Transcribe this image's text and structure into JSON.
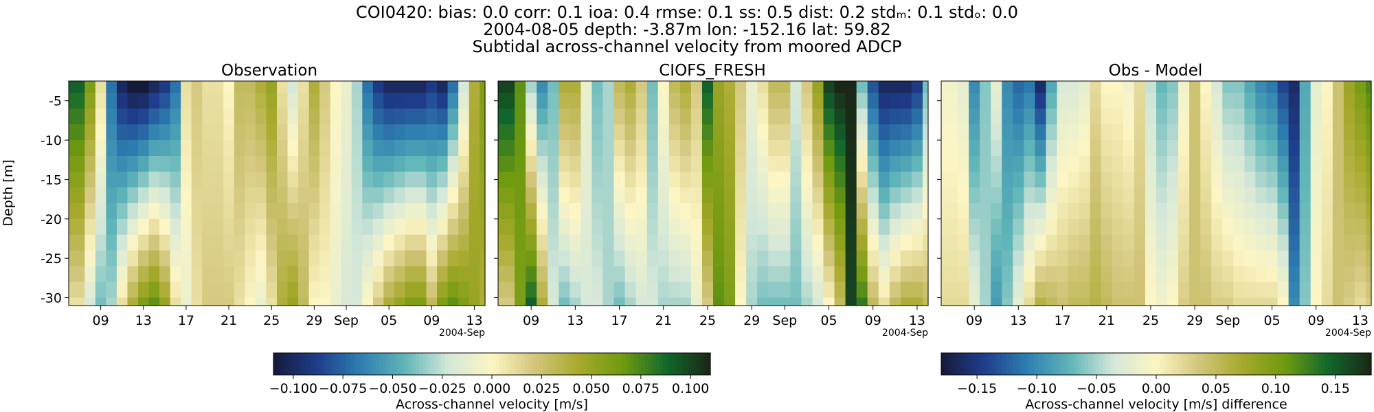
{
  "title_lines": [
    "COI0420: bias: 0.0  corr: 0.1  ioa: 0.4  rmse: 0.1  ss: 0.5  dist: 0.2  stdₘ: 0.1  stdₒ: 0.0",
    "2004-08-05 depth: -3.87m lon: -152.16 lat: 59.82",
    "Subtidal across-channel velocity from moored ADCP"
  ],
  "chart_data": [
    {
      "type": "heatmap",
      "title": "Observation",
      "ylabel": "Depth [m]",
      "xlabel": "",
      "x_ticklabels": [
        "09",
        "13",
        "17",
        "21",
        "25",
        "29",
        "Sep",
        "05",
        "09",
        "13"
      ],
      "x_tick_dates": [
        "2004-08-09",
        "2004-08-13",
        "2004-08-17",
        "2004-08-21",
        "2004-08-25",
        "2004-08-29",
        "2004-09-01",
        "2004-09-05",
        "2004-09-09",
        "2004-09-13"
      ],
      "x_offset_label": "2004-Sep",
      "xlim": [
        "2004-08-06",
        "2004-09-14"
      ],
      "y_ticklabels": [
        "-5",
        "-10",
        "-15",
        "-20",
        "-25",
        "-30"
      ],
      "y_ticks": [
        -5,
        -10,
        -15,
        -20,
        -25,
        -30
      ],
      "ylim": [
        -31,
        -2.5
      ],
      "colormap": "delta (blue-white-green-black)",
      "color_range": [
        -0.11,
        0.11
      ],
      "columns": [
        {
          "date": "2004-08-07",
          "surface": 0.09,
          "bottom": 0.01
        },
        {
          "date": "2004-08-08",
          "surface": 0.06,
          "bottom": -0.02
        },
        {
          "date": "2004-08-09",
          "surface": 0.01,
          "bottom": -0.04
        },
        {
          "date": "2004-08-10",
          "surface": -0.07,
          "bottom": -0.03
        },
        {
          "date": "2004-08-11",
          "surface": -0.1,
          "bottom": 0.01
        },
        {
          "date": "2004-08-12",
          "surface": -0.11,
          "bottom": 0.04
        },
        {
          "date": "2004-08-13",
          "surface": -0.11,
          "bottom": 0.06
        },
        {
          "date": "2004-08-14",
          "surface": -0.1,
          "bottom": 0.07
        },
        {
          "date": "2004-08-15",
          "surface": -0.09,
          "bottom": 0.05
        },
        {
          "date": "2004-08-16",
          "surface": -0.07,
          "bottom": 0.01
        },
        {
          "date": "2004-08-17",
          "surface": 0.01,
          "bottom": -0.01
        },
        {
          "date": "2004-08-18",
          "surface": 0.02,
          "bottom": 0.01
        },
        {
          "date": "2004-08-19",
          "surface": 0.01,
          "bottom": 0.02
        },
        {
          "date": "2004-08-20",
          "surface": 0.01,
          "bottom": 0.02
        },
        {
          "date": "2004-08-21",
          "surface": 0.0,
          "bottom": 0.02
        },
        {
          "date": "2004-08-22",
          "surface": 0.03,
          "bottom": 0.01
        },
        {
          "date": "2004-08-23",
          "surface": 0.03,
          "bottom": 0.0
        },
        {
          "date": "2004-08-24",
          "surface": 0.04,
          "bottom": -0.01
        },
        {
          "date": "2004-08-25",
          "surface": 0.05,
          "bottom": 0.01
        },
        {
          "date": "2004-08-26",
          "surface": 0.01,
          "bottom": 0.04
        },
        {
          "date": "2004-08-27",
          "surface": -0.02,
          "bottom": 0.05
        },
        {
          "date": "2004-08-28",
          "surface": 0.01,
          "bottom": 0.03
        },
        {
          "date": "2004-08-29",
          "surface": 0.04,
          "bottom": 0.0
        },
        {
          "date": "2004-08-30",
          "surface": 0.02,
          "bottom": 0.0
        },
        {
          "date": "2004-08-31",
          "surface": 0.0,
          "bottom": -0.01
        },
        {
          "date": "2004-09-01",
          "surface": -0.01,
          "bottom": -0.02
        },
        {
          "date": "2004-09-02",
          "surface": -0.03,
          "bottom": -0.02
        },
        {
          "date": "2004-09-03",
          "surface": -0.07,
          "bottom": 0.0
        },
        {
          "date": "2004-09-04",
          "surface": -0.09,
          "bottom": 0.02
        },
        {
          "date": "2004-09-05",
          "surface": -0.1,
          "bottom": 0.04
        },
        {
          "date": "2004-09-06",
          "surface": -0.1,
          "bottom": 0.05
        },
        {
          "date": "2004-09-07",
          "surface": -0.1,
          "bottom": 0.06
        },
        {
          "date": "2004-09-08",
          "surface": -0.1,
          "bottom": 0.06
        },
        {
          "date": "2004-09-09",
          "surface": -0.09,
          "bottom": 0.03
        },
        {
          "date": "2004-09-10",
          "surface": -0.1,
          "bottom": 0.06
        },
        {
          "date": "2004-09-11",
          "surface": -0.07,
          "bottom": 0.07
        },
        {
          "date": "2004-09-12",
          "surface": -0.02,
          "bottom": 0.06
        },
        {
          "date": "2004-09-13",
          "surface": 0.04,
          "bottom": 0.05
        },
        {
          "date": "2004-09-14",
          "surface": 0.06,
          "bottom": 0.04
        }
      ]
    },
    {
      "type": "heatmap",
      "title": "CIOFS_FRESH",
      "xlabel": "",
      "x_ticklabels": [
        "09",
        "13",
        "17",
        "21",
        "25",
        "29",
        "Sep",
        "05",
        "09",
        "13"
      ],
      "x_tick_dates": [
        "2004-08-09",
        "2004-08-13",
        "2004-08-17",
        "2004-08-21",
        "2004-08-25",
        "2004-08-29",
        "2004-09-01",
        "2004-09-05",
        "2004-09-09",
        "2004-09-13"
      ],
      "x_offset_label": "2004-Sep",
      "xlim": [
        "2004-08-06",
        "2004-09-14"
      ],
      "ylim": [
        -31,
        -2.5
      ],
      "colormap": "delta (blue-white-green-black)",
      "color_range": [
        -0.11,
        0.11
      ],
      "columns": [
        {
          "date": "2004-08-07",
          "surface": 0.1,
          "bottom": 0.02
        },
        {
          "date": "2004-08-08",
          "surface": 0.07,
          "bottom": 0.06
        },
        {
          "date": "2004-08-09",
          "surface": -0.03,
          "bottom": 0.09
        },
        {
          "date": "2004-08-10",
          "surface": -0.06,
          "bottom": 0.04
        },
        {
          "date": "2004-08-11",
          "surface": -0.04,
          "bottom": -0.02
        },
        {
          "date": "2004-08-12",
          "surface": 0.04,
          "bottom": -0.04
        },
        {
          "date": "2004-08-13",
          "surface": 0.04,
          "bottom": -0.03
        },
        {
          "date": "2004-08-14",
          "surface": -0.01,
          "bottom": -0.02
        },
        {
          "date": "2004-08-15",
          "surface": -0.04,
          "bottom": -0.02
        },
        {
          "date": "2004-08-16",
          "surface": -0.03,
          "bottom": -0.03
        },
        {
          "date": "2004-08-17",
          "surface": 0.03,
          "bottom": -0.04
        },
        {
          "date": "2004-08-18",
          "surface": 0.04,
          "bottom": -0.03
        },
        {
          "date": "2004-08-19",
          "surface": 0.02,
          "bottom": -0.02
        },
        {
          "date": "2004-08-20",
          "surface": -0.04,
          "bottom": -0.02
        },
        {
          "date": "2004-08-21",
          "surface": 0.0,
          "bottom": -0.03
        },
        {
          "date": "2004-08-22",
          "surface": 0.03,
          "bottom": -0.03
        },
        {
          "date": "2004-08-23",
          "surface": 0.04,
          "bottom": -0.03
        },
        {
          "date": "2004-08-24",
          "surface": 0.02,
          "bottom": -0.01
        },
        {
          "date": "2004-08-25",
          "surface": 0.09,
          "bottom": 0.02
        },
        {
          "date": "2004-08-26",
          "surface": 0.05,
          "bottom": 0.07
        },
        {
          "date": "2004-08-27",
          "surface": 0.04,
          "bottom": 0.06
        },
        {
          "date": "2004-08-28",
          "surface": 0.02,
          "bottom": 0.0
        },
        {
          "date": "2004-08-29",
          "surface": -0.01,
          "bottom": -0.03
        },
        {
          "date": "2004-08-30",
          "surface": 0.01,
          "bottom": -0.04
        },
        {
          "date": "2004-08-31",
          "surface": 0.03,
          "bottom": -0.04
        },
        {
          "date": "2004-09-01",
          "surface": 0.03,
          "bottom": -0.04
        },
        {
          "date": "2004-09-02",
          "surface": -0.02,
          "bottom": -0.04
        },
        {
          "date": "2004-09-03",
          "surface": 0.02,
          "bottom": -0.03
        },
        {
          "date": "2004-09-04",
          "surface": 0.05,
          "bottom": -0.02
        },
        {
          "date": "2004-09-05",
          "surface": 0.1,
          "bottom": 0.0
        },
        {
          "date": "2004-09-06",
          "surface": 0.11,
          "bottom": 0.03
        },
        {
          "date": "2004-09-07",
          "surface": 0.11,
          "bottom": 0.1
        },
        {
          "date": "2004-09-08",
          "surface": -0.04,
          "bottom": 0.08
        },
        {
          "date": "2004-09-09",
          "surface": -0.08,
          "bottom": 0.03
        },
        {
          "date": "2004-09-10",
          "surface": -0.1,
          "bottom": 0.01
        },
        {
          "date": "2004-09-11",
          "surface": -0.1,
          "bottom": 0.03
        },
        {
          "date": "2004-09-12",
          "surface": -0.1,
          "bottom": 0.04
        },
        {
          "date": "2004-09-13",
          "surface": -0.09,
          "bottom": 0.04
        },
        {
          "date": "2004-09-14",
          "surface": -0.04,
          "bottom": 0.03
        }
      ]
    },
    {
      "type": "heatmap",
      "title": "Obs - Model",
      "xlabel": "",
      "x_ticklabels": [
        "09",
        "13",
        "17",
        "21",
        "25",
        "29",
        "Sep",
        "05",
        "09",
        "13"
      ],
      "x_tick_dates": [
        "2004-08-09",
        "2004-08-13",
        "2004-08-17",
        "2004-08-21",
        "2004-08-25",
        "2004-08-29",
        "2004-09-01",
        "2004-09-05",
        "2004-09-09",
        "2004-09-13"
      ],
      "x_offset_label": "2004-Sep",
      "xlim": [
        "2004-08-06",
        "2004-09-14"
      ],
      "ylim": [
        -31,
        -2.5
      ],
      "colormap": "delta (blue-white-green-black)",
      "color_range": [
        -0.18,
        0.18
      ],
      "columns": [
        {
          "date": "2004-08-07",
          "surface": -0.01,
          "bottom": 0.02
        },
        {
          "date": "2004-08-08",
          "surface": -0.02,
          "bottom": 0.02
        },
        {
          "date": "2004-08-09",
          "surface": -0.1,
          "bottom": -0.02
        },
        {
          "date": "2004-08-10",
          "surface": -0.06,
          "bottom": -0.05
        },
        {
          "date": "2004-08-11",
          "surface": -0.02,
          "bottom": -0.09
        },
        {
          "date": "2004-08-12",
          "surface": -0.1,
          "bottom": -0.06
        },
        {
          "date": "2004-08-13",
          "surface": -0.12,
          "bottom": -0.02
        },
        {
          "date": "2004-08-14",
          "surface": -0.11,
          "bottom": 0.02
        },
        {
          "date": "2004-08-15",
          "surface": -0.16,
          "bottom": 0.06
        },
        {
          "date": "2004-08-16",
          "surface": -0.08,
          "bottom": 0.05
        },
        {
          "date": "2004-08-17",
          "surface": -0.03,
          "bottom": 0.04
        },
        {
          "date": "2004-08-18",
          "surface": -0.03,
          "bottom": 0.05
        },
        {
          "date": "2004-08-19",
          "surface": -0.02,
          "bottom": 0.05
        },
        {
          "date": "2004-08-20",
          "surface": 0.02,
          "bottom": 0.06
        },
        {
          "date": "2004-08-21",
          "surface": 0.0,
          "bottom": 0.05
        },
        {
          "date": "2004-08-22",
          "surface": 0.0,
          "bottom": 0.04
        },
        {
          "date": "2004-08-23",
          "surface": -0.01,
          "bottom": 0.04
        },
        {
          "date": "2004-08-24",
          "surface": 0.02,
          "bottom": 0.04
        },
        {
          "date": "2004-08-25",
          "surface": -0.04,
          "bottom": 0.0
        },
        {
          "date": "2004-08-26",
          "surface": -0.07,
          "bottom": -0.01
        },
        {
          "date": "2004-08-27",
          "surface": -0.06,
          "bottom": 0.0
        },
        {
          "date": "2004-08-28",
          "surface": -0.01,
          "bottom": 0.03
        },
        {
          "date": "2004-08-29",
          "surface": 0.04,
          "bottom": 0.04
        },
        {
          "date": "2004-08-30",
          "surface": 0.0,
          "bottom": 0.04
        },
        {
          "date": "2004-08-31",
          "surface": -0.03,
          "bottom": 0.03
        },
        {
          "date": "2004-09-01",
          "surface": -0.06,
          "bottom": 0.03
        },
        {
          "date": "2004-09-02",
          "surface": -0.06,
          "bottom": 0.02
        },
        {
          "date": "2004-09-03",
          "surface": -0.08,
          "bottom": 0.02
        },
        {
          "date": "2004-09-04",
          "surface": -0.1,
          "bottom": 0.02
        },
        {
          "date": "2004-09-05",
          "surface": -0.11,
          "bottom": 0.02
        },
        {
          "date": "2004-09-06",
          "surface": -0.14,
          "bottom": 0.0
        },
        {
          "date": "2004-09-07",
          "surface": -0.16,
          "bottom": -0.1
        },
        {
          "date": "2004-09-08",
          "surface": -0.08,
          "bottom": -0.06
        },
        {
          "date": "2004-09-09",
          "surface": -0.02,
          "bottom": 0.0
        },
        {
          "date": "2004-09-10",
          "surface": 0.0,
          "bottom": 0.02
        },
        {
          "date": "2004-09-11",
          "surface": 0.04,
          "bottom": 0.04
        },
        {
          "date": "2004-09-12",
          "surface": 0.08,
          "bottom": 0.03
        },
        {
          "date": "2004-09-13",
          "surface": 0.1,
          "bottom": 0.02
        },
        {
          "date": "2004-09-14",
          "surface": 0.12,
          "bottom": 0.03
        }
      ]
    }
  ],
  "colorbars": [
    {
      "label": "Across-channel velocity [m/s]",
      "ticks": [
        -0.1,
        -0.075,
        -0.05,
        -0.025,
        0.0,
        0.025,
        0.05,
        0.075,
        0.1
      ],
      "ticklabels": [
        "−0.100",
        "−0.075",
        "−0.050",
        "−0.025",
        "0.000",
        "0.025",
        "0.050",
        "0.075",
        "0.100"
      ],
      "range": [
        -0.11,
        0.11
      ]
    },
    {
      "label": "Across-channel velocity [m/s] difference",
      "ticks": [
        -0.15,
        -0.1,
        -0.05,
        0.0,
        0.05,
        0.1,
        0.15
      ],
      "ticklabels": [
        "−0.15",
        "−0.10",
        "−0.05",
        "0.00",
        "0.05",
        "0.10",
        "0.15"
      ],
      "range": [
        -0.18,
        0.18
      ]
    }
  ],
  "colormap_stops": [
    "#151a3a",
    "#1f3d8c",
    "#2e7fb0",
    "#5fb5b8",
    "#d4e8d9",
    "#fdf6c4",
    "#d2c57a",
    "#a7a92c",
    "#6f9a10",
    "#11682c",
    "#1a2616"
  ]
}
